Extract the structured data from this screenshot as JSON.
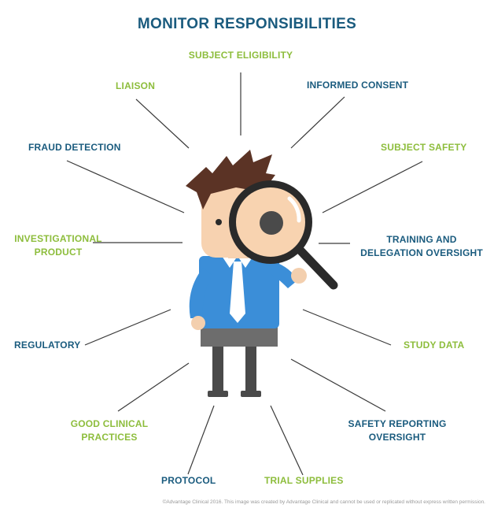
{
  "title": "MONITOR RESPONSIBILITIES",
  "colors": {
    "blue": "#1a5b7e",
    "green": "#8dbd3c",
    "line": "#3a3a3a"
  },
  "labels": {
    "subject_eligibility": "SUBJECT ELIGIBILITY",
    "liaison": "LIAISON",
    "informed_consent": "INFORMED CONSENT",
    "fraud_detection": "FRAUD DETECTION",
    "subject_safety": "SUBJECT SAFETY",
    "investigational_product": [
      "INVESTIGATIONAL",
      "PRODUCT"
    ],
    "training_delegation": [
      "TRAINING AND",
      "DELEGATION OVERSIGHT"
    ],
    "regulatory": "REGULATORY",
    "study_data": "STUDY DATA",
    "good_clinical_practices": [
      "GOOD CLINICAL",
      "PRACTICES"
    ],
    "safety_reporting": [
      "SAFETY REPORTING",
      "OVERSIGHT"
    ],
    "protocol": "PROTOCOL",
    "trial_supplies": "TRIAL SUPPLIES"
  },
  "footer": "©Advantage Clinical 2016. This image was created by Advantage Clinical and cannot be used or replicated without express written permission."
}
